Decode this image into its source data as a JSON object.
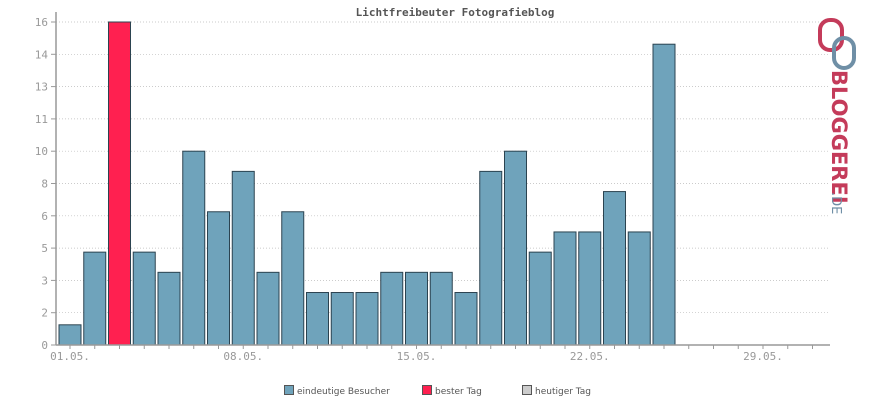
{
  "chart_data": {
    "type": "bar",
    "title": "Lichtfreibeuter Fotografieblog",
    "y_tick_labels": [
      "0",
      "2",
      "3",
      "5",
      "6",
      "8",
      "10",
      "11",
      "13",
      "14",
      "16"
    ],
    "ylim": [
      0,
      16
    ],
    "x_tick_labels": [
      "01.05.",
      "08.05.",
      "15.05.",
      "22.05.",
      "29.05."
    ],
    "grid": true,
    "legend_placement": "bottom",
    "days": [
      "01",
      "02",
      "03",
      "04",
      "05",
      "06",
      "07",
      "08",
      "09",
      "10",
      "11",
      "12",
      "13",
      "14",
      "15",
      "16",
      "17",
      "18",
      "19",
      "20",
      "21",
      "22",
      "23",
      "24",
      "25",
      "26",
      "27",
      "28",
      "29",
      "30",
      "31"
    ],
    "series": [
      {
        "name": "eindeutige Besucher",
        "color": "#6fa3bb",
        "values": [
          1,
          4.6,
          16,
          4.6,
          3.6,
          9.6,
          6.6,
          8.6,
          3.6,
          6.6,
          2.6,
          2.6,
          2.6,
          3.6,
          3.6,
          3.6,
          2.6,
          8.6,
          9.6,
          4.6,
          5.6,
          5.6,
          7.6,
          5.6,
          14.9,
          null,
          null,
          null,
          null,
          null,
          null
        ]
      }
    ],
    "highlight": {
      "name": "bester Tag",
      "index": 2,
      "color": "#ff2050"
    },
    "legend": [
      {
        "label": "eindeutige Besucher",
        "color": "#6fa3bb"
      },
      {
        "label": "bester Tag",
        "color": "#ff2050"
      },
      {
        "label": "heutiger Tag",
        "color": "#cccccc"
      }
    ]
  },
  "logo": {
    "text": "BLOGGEREI",
    "suffix": ".DE",
    "color": "#c43b5a",
    "suffix_color": "#6f8fa6"
  }
}
